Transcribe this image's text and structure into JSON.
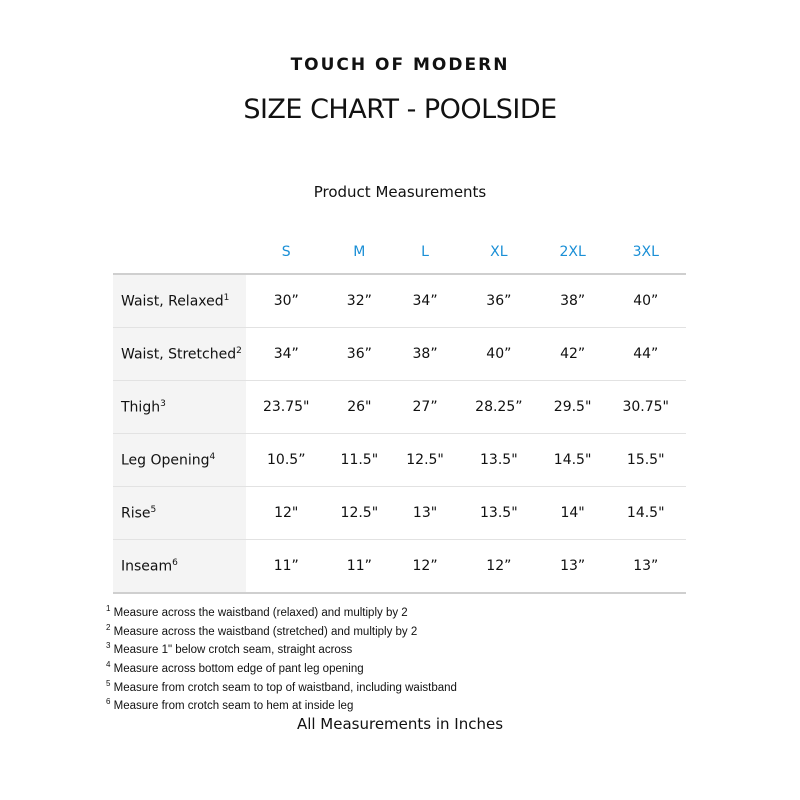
{
  "brand": "TOUCH OF MODERN",
  "title": "SIZE CHART - POOLSIDE",
  "subtitle": "Product Measurements",
  "accent_color": "#1a8fd6",
  "sizes": [
    "S",
    "M",
    "L",
    "XL",
    "2XL",
    "3XL"
  ],
  "rows": [
    {
      "label": "Waist, Relaxed",
      "note": "1",
      "values": [
        "30”",
        "32”",
        "34”",
        "36”",
        "38”",
        "40”"
      ]
    },
    {
      "label": "Waist, Stretched",
      "note": "2",
      "values": [
        "34”",
        "36”",
        "38”",
        "40”",
        "42”",
        "44”"
      ]
    },
    {
      "label": "Thigh",
      "note": "3",
      "values": [
        "23.75\"",
        "26\"",
        "27”",
        "28.25”",
        "29.5\"",
        "30.75\""
      ]
    },
    {
      "label": "Leg Opening",
      "note": "4",
      "values": [
        "10.5”",
        "11.5\"",
        "12.5\"",
        "13.5\"",
        "14.5\"",
        "15.5\""
      ]
    },
    {
      "label": "Rise",
      "note": "5",
      "values": [
        "12\"",
        "12.5\"",
        "13\"",
        "13.5\"",
        "14\"",
        "14.5\""
      ]
    },
    {
      "label": "Inseam",
      "note": "6",
      "values": [
        "11”",
        "11”",
        "12”",
        "12”",
        "13”",
        "13”"
      ]
    }
  ],
  "footnotes": [
    {
      "num": "1",
      "text": " Measure across the waistband (relaxed) and multiply by 2"
    },
    {
      "num": "2",
      "text": " Measure across the waistband (stretched) and multiply by 2"
    },
    {
      "num": "3",
      "text": " Measure 1\" below crotch seam, straight across"
    },
    {
      "num": "4",
      "text": " Measure across bottom edge of pant leg opening"
    },
    {
      "num": "5",
      "text": " Measure from crotch seam to top of waistband, including waistband"
    },
    {
      "num": "6",
      "text": " Measure from crotch seam to hem at inside leg"
    }
  ],
  "footer": "All Measurements in Inches"
}
